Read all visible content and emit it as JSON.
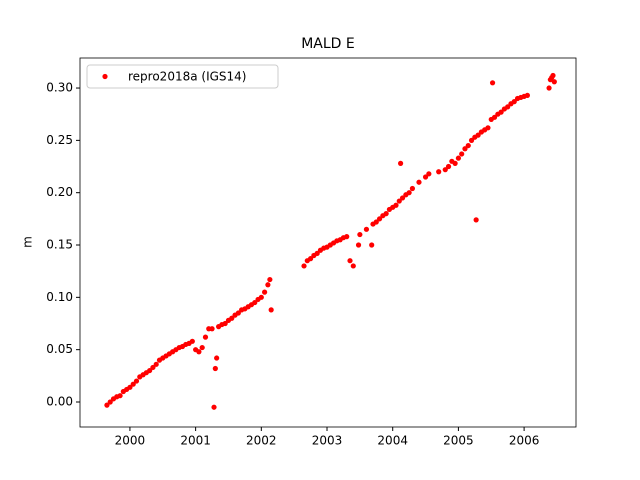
{
  "chart_data": {
    "type": "scatter",
    "title": "MALD E",
    "ylabel": "m",
    "x": [
      1999.65,
      1999.7,
      1999.75,
      1999.8,
      1999.85,
      1999.9,
      1999.95,
      2000.0,
      2000.05,
      2000.1,
      2000.15,
      2000.2,
      2000.25,
      2000.3,
      2000.35,
      2000.4,
      2000.45,
      2000.5,
      2000.55,
      2000.6,
      2000.65,
      2000.7,
      2000.75,
      2000.8,
      2000.85,
      2000.9,
      2000.95,
      2001.0,
      2001.05,
      2001.1,
      2001.15,
      2001.2,
      2001.25,
      2001.28,
      2001.3,
      2001.32,
      2001.35,
      2001.4,
      2001.45,
      2001.5,
      2001.55,
      2001.6,
      2001.65,
      2001.7,
      2001.75,
      2001.8,
      2001.85,
      2001.9,
      2001.95,
      2002.0,
      2002.05,
      2002.1,
      2002.13,
      2002.15,
      2002.65,
      2002.7,
      2002.75,
      2002.8,
      2002.85,
      2002.9,
      2002.95,
      2003.0,
      2003.05,
      2003.1,
      2003.15,
      2003.2,
      2003.25,
      2003.3,
      2003.35,
      2003.4,
      2003.48,
      2003.5,
      2003.6,
      2003.68,
      2003.7,
      2003.75,
      2003.8,
      2003.85,
      2003.9,
      2003.95,
      2004.0,
      2004.05,
      2004.1,
      2004.12,
      2004.15,
      2004.2,
      2004.25,
      2004.3,
      2004.4,
      2004.5,
      2004.55,
      2004.7,
      2004.8,
      2004.85,
      2004.9,
      2004.95,
      2005.0,
      2005.05,
      2005.1,
      2005.15,
      2005.2,
      2005.25,
      2005.27,
      2005.3,
      2005.35,
      2005.4,
      2005.45,
      2005.5,
      2005.52,
      2005.55,
      2005.6,
      2005.65,
      2005.7,
      2005.75,
      2005.8,
      2005.85,
      2005.9,
      2005.95,
      2006.0,
      2006.05,
      2006.38,
      2006.4,
      2006.42,
      2006.44,
      2006.46
    ],
    "series": [
      {
        "name": "repro2018a (IGS14)",
        "color": "#ff0000",
        "values": [
          -0.003,
          0.0,
          0.003,
          0.005,
          0.006,
          0.01,
          0.012,
          0.014,
          0.017,
          0.02,
          0.024,
          0.026,
          0.028,
          0.03,
          0.033,
          0.036,
          0.04,
          0.042,
          0.044,
          0.046,
          0.048,
          0.05,
          0.052,
          0.053,
          0.055,
          0.056,
          0.058,
          0.05,
          0.048,
          0.052,
          0.062,
          0.07,
          0.07,
          -0.005,
          0.032,
          0.042,
          0.072,
          0.074,
          0.075,
          0.078,
          0.08,
          0.083,
          0.085,
          0.088,
          0.089,
          0.091,
          0.093,
          0.095,
          0.098,
          0.1,
          0.105,
          0.112,
          0.117,
          0.088,
          0.13,
          0.135,
          0.137,
          0.14,
          0.142,
          0.145,
          0.147,
          0.148,
          0.15,
          0.152,
          0.154,
          0.155,
          0.157,
          0.158,
          0.135,
          0.13,
          0.15,
          0.16,
          0.165,
          0.15,
          0.17,
          0.172,
          0.175,
          0.178,
          0.18,
          0.184,
          0.186,
          0.188,
          0.192,
          0.228,
          0.195,
          0.198,
          0.2,
          0.204,
          0.21,
          0.215,
          0.218,
          0.22,
          0.222,
          0.225,
          0.23,
          0.228,
          0.233,
          0.237,
          0.242,
          0.245,
          0.25,
          0.253,
          0.174,
          0.255,
          0.258,
          0.26,
          0.262,
          0.27,
          0.305,
          0.272,
          0.275,
          0.277,
          0.28,
          0.282,
          0.285,
          0.287,
          0.29,
          0.291,
          0.292,
          0.293,
          0.3,
          0.308,
          0.31,
          0.312,
          0.306
        ]
      }
    ],
    "xlim": [
      1999.24,
      2006.79
    ],
    "xticks": [
      2000,
      2001,
      2002,
      2003,
      2004,
      2005,
      2006
    ],
    "ylim": [
      -0.0239,
      0.3287
    ],
    "yticks": [
      {
        "value": 0,
        "label": "0.00"
      },
      {
        "value": 0.05,
        "label": "0.05"
      },
      {
        "value": 0.1,
        "label": "0.10"
      },
      {
        "value": 0.15,
        "label": "0.15"
      },
      {
        "value": 0.2,
        "label": "0.20"
      },
      {
        "value": 0.25,
        "label": "0.25"
      },
      {
        "value": 0.3,
        "label": "0.30"
      }
    ],
    "legend": "upper left"
  }
}
